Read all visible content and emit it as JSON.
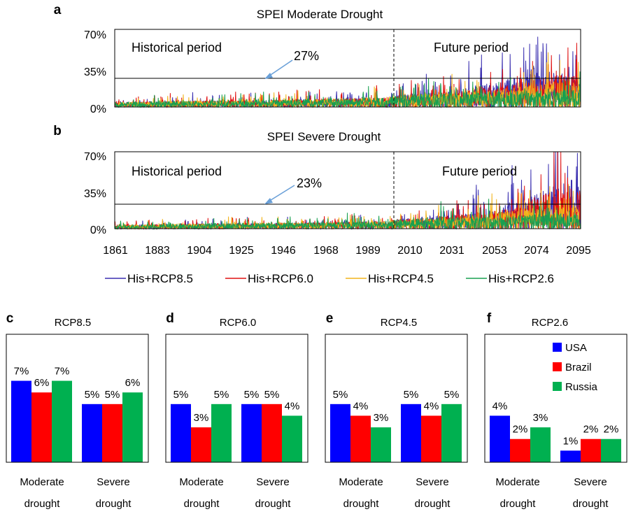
{
  "colors": {
    "RCP8.5": "#3a2fb0",
    "RCP6.0": "#e01010",
    "RCP4.5": "#f2b41c",
    "RCP2.6": "#18a050",
    "USA": "#0000ff",
    "Brazil": "#ff0000",
    "Russia": "#00b050"
  },
  "timeseries": {
    "x_ticks": [
      "1861",
      "1883",
      "1904",
      "1925",
      "1946",
      "1968",
      "1989",
      "2010",
      "2031",
      "2053",
      "2074",
      "2095"
    ],
    "legend": [
      "His+RCP8.5",
      "His+RCP6.0",
      "His+RCP4.5",
      "His+RCP2.6"
    ]
  },
  "chart_data": [
    {
      "type": "line",
      "panel": "a",
      "title": "SPEI Moderate Drought",
      "x_range": [
        1861,
        2100
      ],
      "ylim": [
        0,
        70
      ],
      "y_ticks": [
        "0%",
        "35%",
        "70%"
      ],
      "series": [
        {
          "name": "His+RCP8.5",
          "x": [
            1861,
            1900,
            1950,
            2000,
            2006,
            2020,
            2040,
            2060,
            2070,
            2080,
            2090,
            2100
          ],
          "y": [
            4,
            5,
            6,
            8,
            10,
            12,
            15,
            22,
            30,
            33,
            28,
            25
          ]
        },
        {
          "name": "His+RCP6.0",
          "x": [
            1861,
            1900,
            1950,
            2000,
            2006,
            2020,
            2040,
            2060,
            2070,
            2080,
            2090,
            2100
          ],
          "y": [
            4,
            5,
            6,
            8,
            10,
            11,
            13,
            17,
            20,
            24,
            27,
            26
          ]
        },
        {
          "name": "His+RCP4.5",
          "x": [
            1861,
            1900,
            1950,
            2000,
            2006,
            2020,
            2040,
            2060,
            2070,
            2080,
            2090,
            2100
          ],
          "y": [
            4,
            5,
            6,
            8,
            10,
            11,
            12,
            15,
            17,
            19,
            20,
            20
          ]
        },
        {
          "name": "His+RCP2.6",
          "x": [
            1861,
            1900,
            1950,
            2000,
            2006,
            2020,
            2040,
            2060,
            2070,
            2080,
            2090,
            2100
          ],
          "y": [
            4,
            5,
            6,
            8,
            10,
            11,
            12,
            13,
            13,
            14,
            14,
            14
          ]
        }
      ],
      "reference_line": {
        "y": 27,
        "label": "27%"
      },
      "annotations": [
        "Historical period",
        "Future period"
      ],
      "divider_x": 2006,
      "grid": false
    },
    {
      "type": "line",
      "panel": "b",
      "title": "SPEI Severe Drought",
      "x_range": [
        1861,
        2100
      ],
      "ylim": [
        0,
        70
      ],
      "y_ticks": [
        "0%",
        "35%",
        "70%"
      ],
      "series": [
        {
          "name": "His+RCP8.5",
          "x": [
            1861,
            1900,
            1950,
            2000,
            2006,
            2020,
            2040,
            2060,
            2070,
            2080,
            2090,
            2100
          ],
          "y": [
            3,
            4,
            5,
            6,
            8,
            10,
            14,
            20,
            25,
            32,
            40,
            42
          ]
        },
        {
          "name": "His+RCP6.0",
          "x": [
            1861,
            1900,
            1950,
            2000,
            2006,
            2020,
            2040,
            2060,
            2070,
            2080,
            2090,
            2100
          ],
          "y": [
            3,
            4,
            5,
            6,
            8,
            9,
            12,
            16,
            20,
            28,
            34,
            30
          ]
        },
        {
          "name": "His+RCP4.5",
          "x": [
            1861,
            1900,
            1950,
            2000,
            2006,
            2020,
            2040,
            2060,
            2070,
            2080,
            2090,
            2100
          ],
          "y": [
            3,
            4,
            5,
            6,
            8,
            9,
            11,
            14,
            16,
            18,
            20,
            19
          ]
        },
        {
          "name": "His+RCP2.6",
          "x": [
            1861,
            1900,
            1950,
            2000,
            2006,
            2020,
            2040,
            2060,
            2070,
            2080,
            2090,
            2100
          ],
          "y": [
            3,
            4,
            5,
            6,
            8,
            9,
            10,
            11,
            12,
            12,
            13,
            13
          ]
        }
      ],
      "reference_line": {
        "y": 23,
        "label": "23%"
      },
      "annotations": [
        "Historical period",
        "Future period"
      ],
      "divider_x": 2006,
      "grid": false
    },
    {
      "type": "bar",
      "panel": "c",
      "title": "RCP8.5",
      "categories": [
        "Moderate drought",
        "Severe drought"
      ],
      "ylim": [
        0,
        11
      ],
      "series": [
        {
          "name": "USA",
          "values": [
            7,
            5
          ],
          "labels": [
            "7%",
            "5%"
          ]
        },
        {
          "name": "Brazil",
          "values": [
            6,
            5
          ],
          "labels": [
            "6%",
            "5%"
          ]
        },
        {
          "name": "Russia",
          "values": [
            7,
            6
          ],
          "labels": [
            "7%",
            "6%"
          ]
        }
      ]
    },
    {
      "type": "bar",
      "panel": "d",
      "title": "RCP6.0",
      "categories": [
        "Moderate drought",
        "Severe drought"
      ],
      "ylim": [
        0,
        11
      ],
      "series": [
        {
          "name": "USA",
          "values": [
            5,
            5
          ],
          "labels": [
            "5%",
            "5%"
          ]
        },
        {
          "name": "Brazil",
          "values": [
            3,
            5
          ],
          "labels": [
            "3%",
            "5%"
          ]
        },
        {
          "name": "Russia",
          "values": [
            5,
            4
          ],
          "labels": [
            "5%",
            "4%"
          ]
        }
      ]
    },
    {
      "type": "bar",
      "panel": "e",
      "title": "RCP4.5",
      "categories": [
        "Moderate drought",
        "Severe drought"
      ],
      "ylim": [
        0,
        11
      ],
      "series": [
        {
          "name": "USA",
          "values": [
            5,
            5
          ],
          "labels": [
            "5%",
            "5%"
          ]
        },
        {
          "name": "Brazil",
          "values": [
            4,
            4
          ],
          "labels": [
            "4%",
            "4%"
          ]
        },
        {
          "name": "Russia",
          "values": [
            3,
            5
          ],
          "labels": [
            "3%",
            "5%"
          ]
        }
      ]
    },
    {
      "type": "bar",
      "panel": "f",
      "title": "RCP2.6",
      "categories": [
        "Moderate drought",
        "Severe drought"
      ],
      "ylim": [
        0,
        11
      ],
      "legend": "top-right",
      "series": [
        {
          "name": "USA",
          "values": [
            4,
            1
          ],
          "labels": [
            "4%",
            "1%"
          ]
        },
        {
          "name": "Brazil",
          "values": [
            2,
            2
          ],
          "labels": [
            "2%",
            "2%"
          ]
        },
        {
          "name": "Russia",
          "values": [
            3,
            2
          ],
          "labels": [
            "3%",
            "2%"
          ]
        }
      ]
    }
  ]
}
